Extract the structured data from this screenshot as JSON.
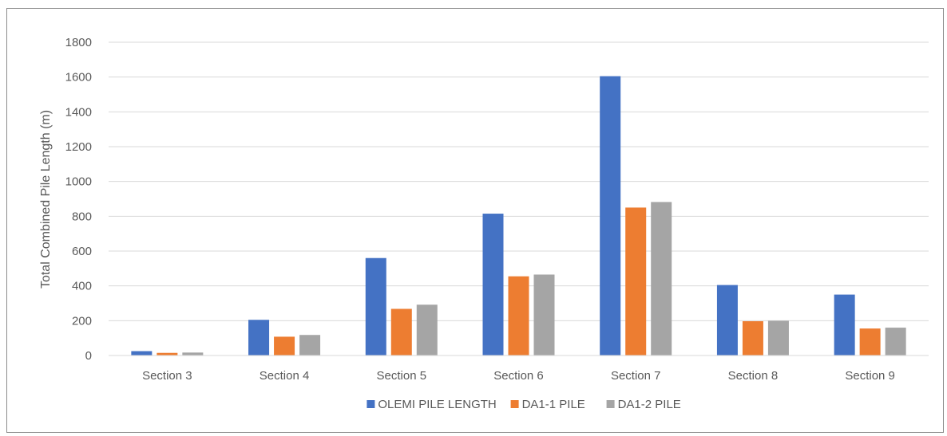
{
  "chart_data": {
    "type": "bar",
    "title": "",
    "xlabel": "",
    "ylabel": "Total Combined Pile Length (m)",
    "ylim": [
      0,
      1800
    ],
    "yticks": [
      0,
      200,
      400,
      600,
      800,
      1000,
      1200,
      1400,
      1600,
      1800
    ],
    "grid": true,
    "legend_position": "bottom",
    "categories": [
      "Section 3",
      "Section 4",
      "Section 5",
      "Section 6",
      "Section 7",
      "Section 8",
      "Section 9"
    ],
    "series": [
      {
        "name": "OLEMI PILE LENGTH",
        "color": "#4472c4",
        "values": [
          25,
          205,
          560,
          815,
          1605,
          405,
          350
        ]
      },
      {
        "name": "DA1-1 PILE",
        "color": "#ed7d31",
        "values": [
          15,
          108,
          268,
          455,
          850,
          197,
          155
        ]
      },
      {
        "name": "DA1-2 PILE",
        "color": "#a5a5a5",
        "values": [
          17,
          118,
          292,
          465,
          882,
          200,
          160
        ]
      }
    ]
  }
}
